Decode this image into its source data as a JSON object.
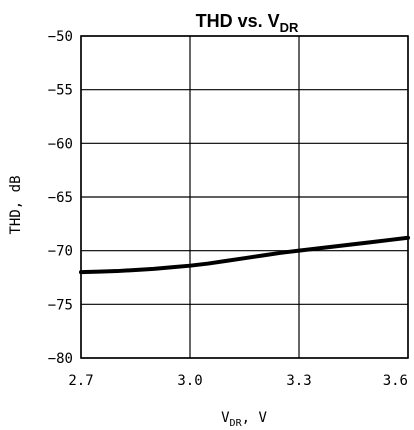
{
  "chart_data": {
    "type": "line",
    "title_main": "THD vs. V",
    "title_sub": "DR",
    "xlabel_main": "V",
    "xlabel_sub": "DR",
    "xlabel_unit": ", V",
    "ylabel": "THD, dB",
    "xlim": [
      2.7,
      3.6
    ],
    "ylim": [
      -80,
      -50
    ],
    "x_ticks": [
      2.7,
      3.0,
      3.3,
      3.6
    ],
    "x_tick_labels": [
      "2.7",
      "3.0",
      "3.3",
      "3.6"
    ],
    "y_ticks": [
      -50,
      -55,
      -60,
      -65,
      -70,
      -75,
      -80
    ],
    "y_tick_labels": [
      "−50",
      "−55",
      "−60",
      "−65",
      "−70",
      "−75",
      "−80"
    ],
    "grid": true,
    "series": [
      {
        "x": [
          2.7,
          2.75,
          2.8,
          2.85,
          2.9,
          2.95,
          3.0,
          3.05,
          3.1,
          3.15,
          3.2,
          3.25,
          3.3,
          3.35,
          3.4,
          3.45,
          3.5,
          3.55,
          3.6
        ],
        "y": [
          -72.0,
          -71.95,
          -71.9,
          -71.8,
          -71.7,
          -71.55,
          -71.4,
          -71.2,
          -70.95,
          -70.7,
          -70.45,
          -70.2,
          -70.0,
          -69.8,
          -69.6,
          -69.4,
          -69.2,
          -69.0,
          -68.8
        ]
      }
    ]
  }
}
